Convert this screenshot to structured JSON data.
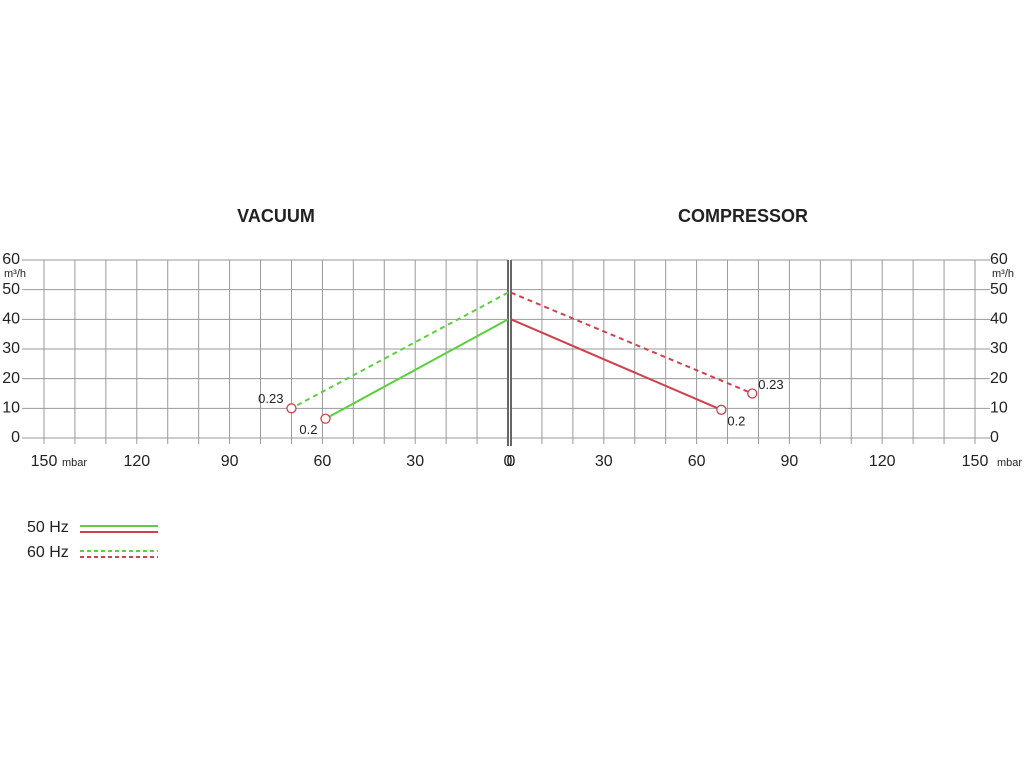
{
  "chart_data": [
    {
      "type": "line",
      "title": "VACUUM",
      "x_label": "mbar",
      "y_label": "m³/h",
      "xlim": [
        150,
        0
      ],
      "ylim": [
        0,
        60
      ],
      "xticks": [
        150,
        120,
        90,
        60,
        30,
        0
      ],
      "yticks": [
        0,
        10,
        20,
        30,
        40,
        50,
        60
      ],
      "xgrid": [
        0,
        10,
        20,
        30,
        40,
        50,
        60,
        70,
        80,
        90,
        100,
        110,
        120,
        130,
        140,
        150
      ],
      "y_axis_side": "left",
      "marker_color": "#d0404e",
      "series": [
        {
          "color": "#5ccf3e",
          "dashed": false,
          "x": [
            0,
            59
          ],
          "values": [
            40,
            6.5
          ],
          "end_label": "0.2"
        },
        {
          "color": "#5ccf3e",
          "dashed": true,
          "x": [
            0,
            70
          ],
          "values": [
            49,
            10
          ],
          "end_label": "0.23"
        }
      ]
    },
    {
      "type": "line",
      "title": "COMPRESSOR",
      "x_label": "mbar",
      "y_label": "m³/h",
      "xlim": [
        0,
        150
      ],
      "ylim": [
        0,
        60
      ],
      "xticks": [
        0,
        30,
        60,
        90,
        120,
        150
      ],
      "yticks": [
        0,
        10,
        20,
        30,
        40,
        50,
        60
      ],
      "xgrid": [
        0,
        10,
        20,
        30,
        40,
        50,
        60,
        70,
        80,
        90,
        100,
        110,
        120,
        130,
        140,
        150
      ],
      "y_axis_side": "right",
      "marker_color": "#d0404e",
      "series": [
        {
          "color": "#d0404e",
          "dashed": false,
          "x": [
            0,
            68
          ],
          "values": [
            40,
            9.5
          ],
          "end_label": "0.2"
        },
        {
          "color": "#d0404e",
          "dashed": true,
          "x": [
            0,
            78
          ],
          "values": [
            49,
            15
          ],
          "end_label": "0.23"
        }
      ]
    }
  ],
  "legend": [
    {
      "label": "50 Hz",
      "dashed": false
    },
    {
      "label": "60 Hz",
      "dashed": true
    }
  ]
}
